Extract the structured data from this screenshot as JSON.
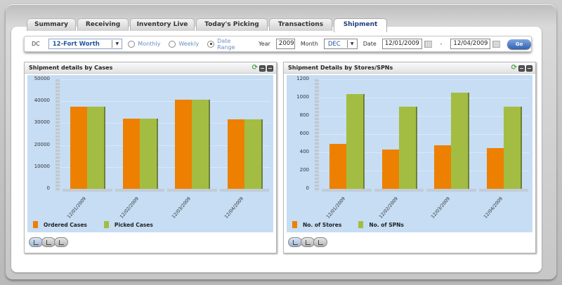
{
  "tabs": [
    {
      "label": "Summary",
      "active": false
    },
    {
      "label": "Receiving",
      "active": false
    },
    {
      "label": "Inventory Live",
      "active": false
    },
    {
      "label": "Today's Picking",
      "active": false
    },
    {
      "label": "Transactions",
      "active": false
    },
    {
      "label": "Shipment",
      "active": true
    }
  ],
  "filters": {
    "dc_label": "DC",
    "dc_value": "12-Fort Worth",
    "radio_monthly": "Monthly",
    "radio_weekly": "Weekly",
    "radio_date_range": "Date Range",
    "selected_radio": "Date Range",
    "year_label": "Year",
    "year_value": "2009",
    "month_label": "Month",
    "month_value": "DEC",
    "date_label": "Date",
    "date_from": "12/01/2009",
    "date_separator": "-",
    "date_to": "12/04/2009",
    "go_label": "Go"
  },
  "panels": [
    {
      "title": "Shipment details by Cases"
    },
    {
      "title": "Shipment Details by Stores/SPNs"
    }
  ],
  "colors": {
    "series1": "#ed8000",
    "series2": "#a3bd42",
    "plot_bg": "#c6ddf4"
  },
  "chart_data": [
    {
      "type": "bar",
      "title": "Shipment details by Cases",
      "categories": [
        "12/01/2009",
        "12/02/2009",
        "12/03/2009",
        "12/04/2009"
      ],
      "series": [
        {
          "name": "Ordered Cases",
          "values": [
            37400,
            32000,
            40600,
            31600
          ]
        },
        {
          "name": "Picked Cases",
          "values": [
            37400,
            32000,
            40600,
            31600
          ]
        }
      ],
      "yticks": [
        "0",
        "10000",
        "20000",
        "30000",
        "40000",
        "50000"
      ],
      "ylim": [
        0,
        50000
      ],
      "xlabel": "",
      "ylabel": "",
      "legend_position": "bottom",
      "grid": true
    },
    {
      "type": "bar",
      "title": "Shipment Details by Stores/SPNs",
      "categories": [
        "12/01/2009",
        "12/02/2009",
        "12/03/2009",
        "12/04/2009"
      ],
      "series": [
        {
          "name": "No. of Stores",
          "values": [
            492,
            430,
            477,
            446
          ]
        },
        {
          "name": "No. of SPNs",
          "values": [
            1038,
            900,
            1054,
            900
          ]
        }
      ],
      "yticks": [
        "0",
        "200",
        "400",
        "600",
        "800",
        "1000",
        "1200"
      ],
      "ylim": [
        0,
        1200
      ],
      "xlabel": "",
      "ylabel": "",
      "legend_position": "bottom",
      "grid": true
    }
  ]
}
